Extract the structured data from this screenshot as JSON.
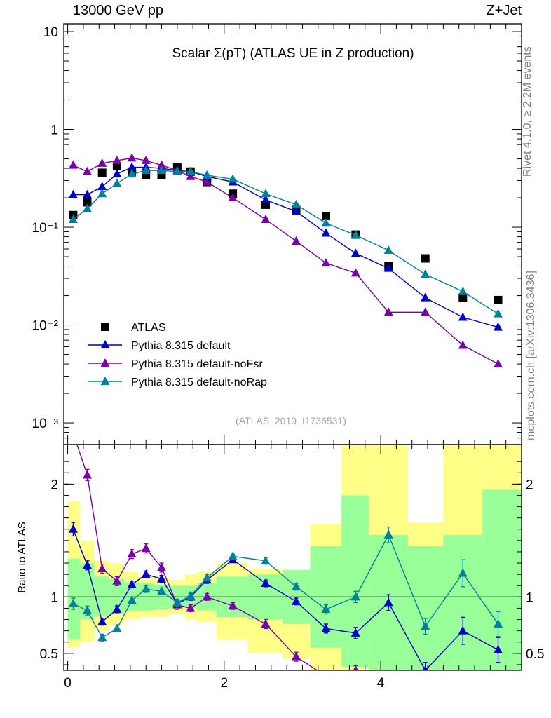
{
  "header": {
    "left": "13000 GeV pp",
    "right": "Z+Jet"
  },
  "side_labels": {
    "top": "Rivet 4.1.0, ≥ 2.2M events",
    "bottom": "mcplots.cern.ch [arXiv:1306.3436]"
  },
  "colors": {
    "data": "#000000",
    "default": "#0000cc",
    "noFsr": "#7a00aa",
    "noRap": "#00809b",
    "band_yellow": "#ffff88",
    "band_green": "#99ff99"
  },
  "chart_data": {
    "type": "line",
    "title": "Scalar Σ(pT) (ATLAS UE in Z production)",
    "analysis_tag": "(ATLAS_2019_I1736531)",
    "main": {
      "yscale": "log",
      "ylim": [
        0.0006,
        12
      ],
      "yticks": [
        "10",
        "1",
        "10⁻¹",
        "10⁻²",
        "10⁻³"
      ],
      "legend_position": "bottom-left"
    },
    "ratio": {
      "ylabel": "Ratio to ATLAS",
      "ylim": [
        0.35,
        2.35
      ],
      "yticks": [
        "0.5",
        "1",
        "2"
      ]
    },
    "xlim": [
      -0.05,
      5.8
    ],
    "xticks": [
      "0",
      "2",
      "4"
    ],
    "x": [
      0.07,
      0.25,
      0.44,
      0.63,
      0.82,
      1.0,
      1.2,
      1.4,
      1.57,
      1.78,
      2.11,
      2.53,
      2.92,
      3.3,
      3.68,
      4.1,
      4.57,
      5.05,
      5.5
    ],
    "series": [
      {
        "name": "ATLAS",
        "marker": "square",
        "values": [
          0.133,
          0.18,
          0.36,
          0.42,
          0.37,
          0.34,
          0.34,
          0.41,
          0.37,
          0.29,
          0.22,
          0.17,
          0.15,
          0.13,
          0.084,
          0.04,
          0.048,
          0.019,
          0.018
        ],
        "ratio": [
          1,
          1,
          1,
          1,
          1,
          1,
          1,
          1,
          1,
          1,
          1,
          1,
          1,
          1,
          1,
          1,
          1,
          1,
          1
        ]
      },
      {
        "name": "Pythia 8.315 default",
        "marker": "triangle",
        "values": [
          0.215,
          0.215,
          0.26,
          0.35,
          0.41,
          0.41,
          0.4,
          0.38,
          0.37,
          0.33,
          0.29,
          0.19,
          0.145,
          0.087,
          0.054,
          0.038,
          0.019,
          0.012,
          0.0095
        ],
        "ratio": [
          1.6,
          1.28,
          0.78,
          0.89,
          1.11,
          1.2,
          1.16,
          0.94,
          1.0,
          1.15,
          1.33,
          1.12,
          0.96,
          0.72,
          0.68,
          0.95,
          0.35,
          0.7,
          0.53
        ],
        "ratio_err": [
          0.06,
          0.04,
          0.03,
          0.03,
          0.03,
          0.03,
          0.03,
          0.03,
          0.03,
          0.03,
          0.02,
          0.03,
          0.03,
          0.04,
          0.05,
          0.07,
          0.07,
          0.12,
          0.11
        ]
      },
      {
        "name": "Pythia 8.315 default-noFsr",
        "marker": "triangle",
        "values": [
          0.43,
          0.37,
          0.45,
          0.48,
          0.51,
          0.48,
          0.43,
          0.38,
          0.33,
          0.29,
          0.2,
          0.12,
          0.072,
          0.043,
          0.034,
          0.0135,
          0.0135,
          0.0062,
          0.004
        ],
        "ratio": [
          3.2,
          2.08,
          1.25,
          1.14,
          1.38,
          1.43,
          1.26,
          0.93,
          0.9,
          1.0,
          0.92,
          0.76,
          0.47,
          0.3,
          0.35,
          0.3,
          0.28,
          0.3,
          0.3
        ],
        "ratio_err": [
          0.08,
          0.05,
          0.04,
          0.04,
          0.04,
          0.04,
          0.04,
          0.04,
          0.03,
          0.03,
          0.03,
          0.04,
          0.04,
          0.04,
          0.04,
          0.05,
          0.05,
          0.05,
          0.05
        ]
      },
      {
        "name": "Pythia 8.315 default-noRap",
        "marker": "triangle",
        "values": [
          0.12,
          0.155,
          0.22,
          0.28,
          0.35,
          0.38,
          0.38,
          0.37,
          0.37,
          0.34,
          0.31,
          0.22,
          0.17,
          0.11,
          0.083,
          0.058,
          0.033,
          0.022,
          0.013
        ],
        "ratio": [
          0.94,
          0.88,
          0.64,
          0.72,
          0.97,
          1.07,
          1.05,
          0.95,
          1.01,
          1.17,
          1.36,
          1.32,
          1.09,
          0.89,
          1.0,
          1.55,
          0.74,
          1.21,
          0.76
        ],
        "ratio_err": [
          0.05,
          0.04,
          0.03,
          0.03,
          0.03,
          0.03,
          0.03,
          0.03,
          0.03,
          0.03,
          0.02,
          0.03,
          0.03,
          0.04,
          0.05,
          0.07,
          0.07,
          0.12,
          0.11
        ]
      }
    ],
    "uncertainty_bands": {
      "edges": [
        0.0,
        0.16,
        0.34,
        0.53,
        0.72,
        0.91,
        1.1,
        1.3,
        1.5,
        1.65,
        1.9,
        2.3,
        2.75,
        3.1,
        3.5,
        3.85,
        4.35,
        4.8,
        5.3,
        5.8
      ],
      "yellow": [
        [
          0.55,
          1.85
        ],
        [
          0.6,
          1.5
        ],
        [
          0.7,
          1.32
        ],
        [
          0.75,
          1.3
        ],
        [
          0.8,
          1.22
        ],
        [
          0.82,
          1.18
        ],
        [
          0.82,
          1.18
        ],
        [
          0.85,
          1.15
        ],
        [
          0.8,
          1.2
        ],
        [
          0.78,
          1.22
        ],
        [
          0.62,
          1.3
        ],
        [
          0.5,
          1.25
        ],
        [
          0.45,
          1.23
        ],
        [
          0.3,
          1.65
        ],
        [
          0.3,
          2.5
        ],
        [
          0.3,
          2.5
        ],
        [
          0.3,
          1.66
        ],
        [
          0.3,
          2.5
        ],
        [
          0.3,
          2.5
        ]
      ],
      "green": [
        [
          0.62,
          1.34
        ],
        [
          0.8,
          1.3
        ],
        [
          0.83,
          1.18
        ],
        [
          0.85,
          1.16
        ],
        [
          0.87,
          1.13
        ],
        [
          0.88,
          1.12
        ],
        [
          0.89,
          1.11
        ],
        [
          0.9,
          1.1
        ],
        [
          0.9,
          1.1
        ],
        [
          0.88,
          1.12
        ],
        [
          0.82,
          1.18
        ],
        [
          0.8,
          1.2
        ],
        [
          0.76,
          1.24
        ],
        [
          0.55,
          1.45
        ],
        [
          0.38,
          1.9
        ],
        [
          0.3,
          1.55
        ],
        [
          0.3,
          1.45
        ],
        [
          0.3,
          1.55
        ],
        [
          0.3,
          1.95
        ]
      ]
    }
  }
}
